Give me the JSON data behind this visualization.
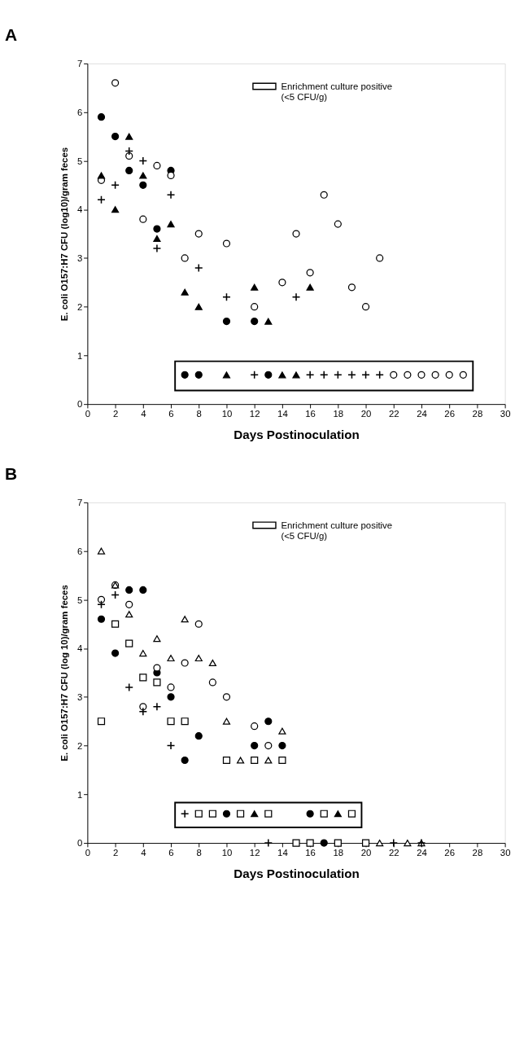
{
  "chart_data": [
    {
      "type": "scatter",
      "title": "A",
      "xlabel": "Days   Postinoculation",
      "ylabel": "E. coli  O157:H7  CFU  (log10)/gram  feces",
      "xlim": [
        0,
        30
      ],
      "ylim": [
        0,
        7
      ],
      "xticks": [
        0,
        2,
        4,
        6,
        8,
        10,
        12,
        14,
        16,
        18,
        20,
        22,
        24,
        26,
        28,
        30
      ],
      "yticks": [
        0,
        1,
        2,
        3,
        4,
        5,
        6,
        7
      ],
      "grid": false,
      "bands": [
        {
          "axis": "y",
          "from": 0.28,
          "to": 0.88,
          "label": "Enrichment culture positive\n(<5 CFU/g)"
        }
      ],
      "series": [
        {
          "color": "#000000",
          "marker": "circle",
          "x": [
            1,
            2,
            3,
            4,
            5,
            6,
            7,
            8,
            10,
            12,
            13
          ],
          "values": [
            5.9,
            5.5,
            4.8,
            4.5,
            3.6,
            4.8,
            0.6,
            0.6,
            1.7,
            1.7,
            0.6
          ]
        },
        {
          "color": "#ffffff",
          "marker": "circle",
          "x": [
            1,
            2,
            3,
            4,
            5,
            6,
            7,
            8,
            10,
            12,
            14,
            15,
            16,
            17,
            18,
            19,
            20,
            21,
            22,
            23,
            24,
            25,
            26,
            27
          ],
          "values": [
            4.6,
            6.6,
            5.1,
            3.8,
            4.9,
            4.7,
            3.0,
            3.5,
            3.3,
            2.0,
            2.5,
            3.5,
            2.7,
            4.3,
            3.7,
            2.4,
            2.0,
            3.0,
            0.6,
            0.6,
            0.6,
            0.6,
            0.6,
            0.6
          ]
        },
        {
          "color": "#000000",
          "marker": "triangle",
          "x": [
            1,
            2,
            3,
            4,
            5,
            6,
            7,
            8,
            10,
            12,
            13,
            14,
            15,
            16
          ],
          "values": [
            4.7,
            4.0,
            5.5,
            4.7,
            3.4,
            3.7,
            2.3,
            2.0,
            0.6,
            2.4,
            1.7,
            0.6,
            0.6,
            2.4
          ]
        },
        {
          "color": "#000000",
          "marker": "cross",
          "x": [
            1,
            2,
            3,
            4,
            5,
            6,
            8,
            10,
            12,
            15,
            16,
            17,
            18,
            19,
            20,
            21
          ],
          "values": [
            4.2,
            4.5,
            5.2,
            5.0,
            3.2,
            4.3,
            2.8,
            2.2,
            0.6,
            2.2,
            0.6,
            0.6,
            0.6,
            0.6,
            0.6,
            0.6
          ]
        }
      ]
    },
    {
      "type": "scatter",
      "title": "B",
      "xlabel": "Days   Postinoculation",
      "ylabel": "E. coli  O157:H7  CFU  (log 10)/gram  feces",
      "xlim": [
        0,
        30
      ],
      "ylim": [
        0,
        7
      ],
      "xticks": [
        0,
        2,
        4,
        6,
        8,
        10,
        12,
        14,
        16,
        18,
        20,
        22,
        24,
        26,
        28,
        30
      ],
      "yticks": [
        0,
        1,
        2,
        3,
        4,
        5,
        6,
        7
      ],
      "grid": false,
      "bands": [
        {
          "axis": "y",
          "from": 0.32,
          "to": 0.83,
          "label": "Enrichment culture positive\n(<5 CFU/g)"
        }
      ],
      "series": [
        {
          "color": "#000000",
          "marker": "circle",
          "x": [
            1,
            2,
            3,
            4,
            5,
            6,
            7,
            8,
            10,
            12,
            13,
            14,
            16,
            17
          ],
          "values": [
            4.6,
            3.9,
            5.2,
            5.2,
            3.5,
            3.0,
            1.7,
            2.2,
            0.6,
            2.0,
            2.5,
            2.0,
            0.6,
            0
          ]
        },
        {
          "color": "#ffffff",
          "marker": "circle",
          "x": [
            1,
            2,
            3,
            4,
            5,
            6,
            7,
            8,
            9,
            10,
            12,
            13
          ],
          "values": [
            5.0,
            5.3,
            4.9,
            2.8,
            3.6,
            3.2,
            3.7,
            4.5,
            3.3,
            3.0,
            2.4,
            2.0
          ]
        },
        {
          "color": "#ffffff",
          "marker": "triangle",
          "x": [
            1,
            2,
            3,
            4,
            5,
            6,
            7,
            8,
            9,
            10,
            11,
            13,
            14,
            21,
            23,
            24
          ],
          "values": [
            6.0,
            5.3,
            4.7,
            3.9,
            4.2,
            3.8,
            4.6,
            3.8,
            3.7,
            2.5,
            1.7,
            1.7,
            2.3,
            0,
            0,
            0
          ]
        },
        {
          "color": "#000000",
          "marker": "triangle",
          "x": [
            12,
            18
          ],
          "values": [
            0.6,
            0.6
          ]
        },
        {
          "color": "#ffffff",
          "marker": "square",
          "x": [
            1,
            2,
            3,
            4,
            5,
            6,
            7,
            8,
            9,
            10,
            11,
            12,
            13,
            14,
            15,
            16,
            17,
            18,
            19,
            20
          ],
          "values": [
            2.5,
            4.5,
            4.1,
            3.4,
            3.3,
            2.5,
            2.5,
            0.6,
            0.6,
            1.7,
            0.6,
            1.7,
            0.6,
            1.7,
            0,
            0,
            0.6,
            0,
            0.6,
            0
          ]
        },
        {
          "color": "#000000",
          "marker": "cross",
          "x": [
            1,
            2,
            3,
            4,
            5,
            6,
            7,
            13,
            22,
            24
          ],
          "values": [
            4.9,
            5.1,
            3.2,
            2.7,
            2.8,
            2.0,
            0.6,
            0,
            0,
            0
          ]
        }
      ]
    }
  ]
}
